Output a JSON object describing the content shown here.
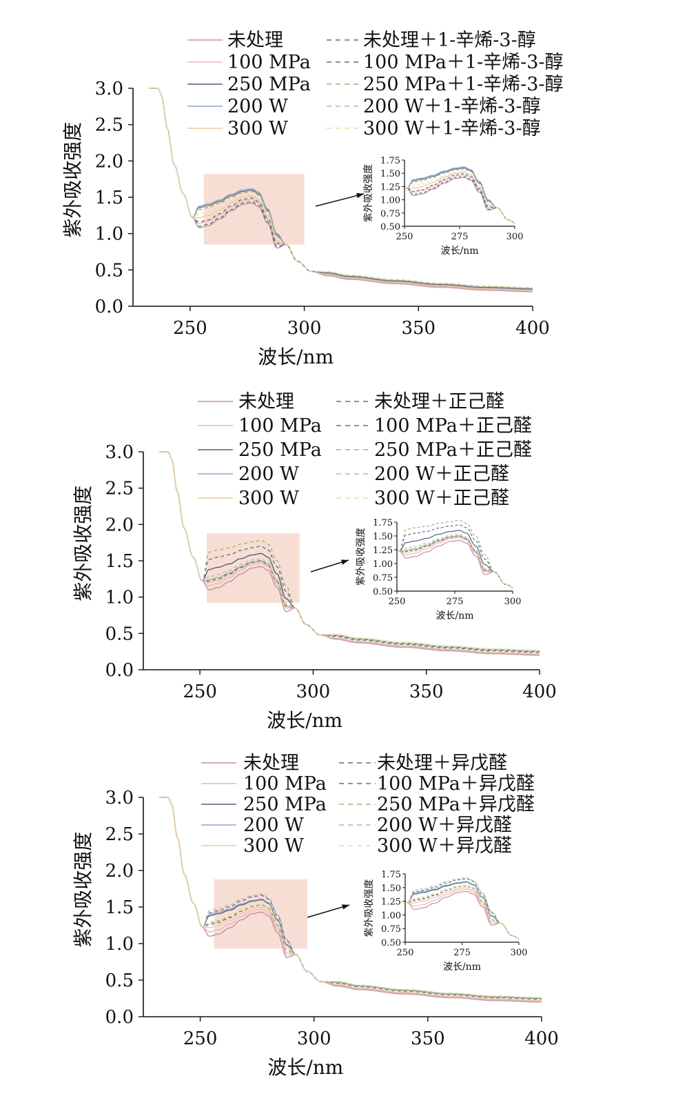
{
  "colors": {
    "untreated": "#c98da0",
    "p100": "#e8b8c4",
    "p250": "#4f5f7d",
    "w200": "#8ea7cc",
    "w300": "#f0c89a",
    "d_untreated": "#51786a",
    "d_p100": "#6b6b80",
    "d_p250": "#a6b170",
    "d_w200": "#a9b9ad",
    "d_w300": "#ecd9a6",
    "highlight": "#f6d8cc",
    "axis": "#111111"
  },
  "chart_data": [
    {
      "type": "line",
      "title": "",
      "xlabel": "波长/nm",
      "ylabel": "紫外吸收强度",
      "xlim": [
        225,
        400
      ],
      "ylim": [
        0,
        3.0
      ],
      "xticks": [
        "250",
        "300",
        "350",
        "400"
      ],
      "yticks": [
        "0.0",
        "0.5",
        "1.0",
        "1.5",
        "2.0",
        "2.5",
        "3.0"
      ],
      "legend_position": "top",
      "highlight_range": {
        "x": [
          256,
          300
        ],
        "y": [
          0.85,
          1.82
        ]
      },
      "inset": {
        "xlabel": "波长/nm",
        "ylabel": "紫外吸收强度",
        "xlim": [
          250,
          300
        ],
        "ylim": [
          0.5,
          1.75
        ],
        "xticks": [
          "250",
          "275",
          "300"
        ],
        "yticks": [
          "0.50",
          "0.75",
          "1.00",
          "1.25",
          "1.50",
          "1.75"
        ]
      },
      "series": [
        {
          "name": "未处理",
          "style": "solid",
          "color_key": "untreated",
          "min": 1.08,
          "peak": 1.42,
          "tail": 0.2
        },
        {
          "name": "100 MPa",
          "style": "solid",
          "color_key": "p100",
          "min": 1.14,
          "peak": 1.47,
          "tail": 0.21
        },
        {
          "name": "250 MPa",
          "style": "solid",
          "color_key": "p250",
          "min": 1.36,
          "peak": 1.6,
          "tail": 0.22
        },
        {
          "name": "200 W",
          "style": "solid",
          "color_key": "w200",
          "min": 1.38,
          "peak": 1.62,
          "tail": 0.23
        },
        {
          "name": "300 W",
          "style": "solid",
          "color_key": "w300",
          "min": 1.22,
          "peak": 1.52,
          "tail": 0.22
        },
        {
          "name": "未处理＋1-辛烯-3-醇",
          "style": "dashed",
          "color_key": "d_untreated",
          "min": 1.1,
          "peak": 1.44,
          "tail": 0.24
        },
        {
          "name": "100 MPa＋1-辛烯-3-醇",
          "style": "dashed",
          "color_key": "d_p100",
          "min": 1.16,
          "peak": 1.49,
          "tail": 0.24
        },
        {
          "name": "250 MPa＋1-辛烯-3-醇",
          "style": "dashed",
          "color_key": "d_p250",
          "min": 1.33,
          "peak": 1.58,
          "tail": 0.25
        },
        {
          "name": "200 W＋1-辛烯-3-醇",
          "style": "dashed",
          "color_key": "d_w200",
          "min": 1.35,
          "peak": 1.59,
          "tail": 0.25
        },
        {
          "name": "300 W＋1-辛烯-3-醇",
          "style": "dashed",
          "color_key": "d_w300",
          "min": 1.27,
          "peak": 1.53,
          "tail": 0.26
        }
      ]
    },
    {
      "type": "line",
      "title": "",
      "xlabel": "波长/nm",
      "ylabel": "紫外吸收强度",
      "xlim": [
        225,
        400
      ],
      "ylim": [
        0,
        3.0
      ],
      "xticks": [
        "250",
        "300",
        "350",
        "400"
      ],
      "yticks": [
        "0.0",
        "0.5",
        "1.0",
        "1.5",
        "2.0",
        "2.5",
        "3.0"
      ],
      "legend_position": "top",
      "highlight_range": {
        "x": [
          253,
          294
        ],
        "y": [
          0.92,
          1.88
        ]
      },
      "inset": {
        "xlabel": "波长/nm",
        "ylabel": "紫外吸收强度",
        "xlim": [
          250,
          300
        ],
        "ylim": [
          0.5,
          1.75
        ],
        "xticks": [
          "250",
          "275",
          "300"
        ],
        "yticks": [
          "0.50",
          "0.75",
          "1.00",
          "1.25",
          "1.50",
          "1.75"
        ]
      },
      "series": [
        {
          "name": "未处理",
          "style": "solid",
          "color_key": "untreated",
          "min": 1.1,
          "peak": 1.42,
          "tail": 0.2
        },
        {
          "name": "100 MPa",
          "style": "solid",
          "color_key": "p100",
          "min": 1.16,
          "peak": 1.47,
          "tail": 0.21
        },
        {
          "name": "250 MPa",
          "style": "solid",
          "color_key": "p250",
          "min": 1.38,
          "peak": 1.6,
          "tail": 0.22
        },
        {
          "name": "200 W",
          "style": "solid",
          "color_key": "w200",
          "min": 1.24,
          "peak": 1.5,
          "tail": 0.22
        },
        {
          "name": "300 W",
          "style": "solid",
          "color_key": "w300",
          "min": 1.2,
          "peak": 1.49,
          "tail": 0.22
        },
        {
          "name": "未处理＋正己醛",
          "style": "dashed",
          "color_key": "d_untreated",
          "min": 1.22,
          "peak": 1.5,
          "tail": 0.24
        },
        {
          "name": "100 MPa＋正己醛",
          "style": "dashed",
          "color_key": "d_p100",
          "min": 1.52,
          "peak": 1.7,
          "tail": 0.25
        },
        {
          "name": "250 MPa＋正己醛",
          "style": "dashed",
          "color_key": "d_p250",
          "min": 1.62,
          "peak": 1.78,
          "tail": 0.26
        },
        {
          "name": "200 W＋正己醛",
          "style": "dashed",
          "color_key": "d_w200",
          "min": 1.28,
          "peak": 1.53,
          "tail": 0.25
        },
        {
          "name": "300 W＋正己醛",
          "style": "dashed",
          "color_key": "d_w300",
          "min": 1.25,
          "peak": 1.52,
          "tail": 0.27
        }
      ]
    },
    {
      "type": "line",
      "title": "",
      "xlabel": "波长/nm",
      "ylabel": "紫外吸收强度",
      "xlim": [
        225,
        400
      ],
      "ylim": [
        0,
        3.0
      ],
      "xticks": [
        "250",
        "300",
        "350",
        "400"
      ],
      "yticks": [
        "0.0",
        "0.5",
        "1.0",
        "1.5",
        "2.0",
        "2.5",
        "3.0"
      ],
      "legend_position": "top",
      "highlight_range": {
        "x": [
          256,
          297
        ],
        "y": [
          0.93,
          1.88
        ]
      },
      "inset": {
        "xlabel": "波长/nm",
        "ylabel": "紫外吸收强度",
        "xlim": [
          250,
          300
        ],
        "ylim": [
          0.5,
          1.75
        ],
        "xticks": [
          "250",
          "275",
          "300"
        ],
        "yticks": [
          "0.50",
          "0.75",
          "1.00",
          "1.25",
          "1.50",
          "1.75"
        ]
      },
      "series": [
        {
          "name": "未处理",
          "style": "solid",
          "color_key": "untreated",
          "min": 1.1,
          "peak": 1.43,
          "tail": 0.2
        },
        {
          "name": "100 MPa",
          "style": "solid",
          "color_key": "p100",
          "min": 1.16,
          "peak": 1.47,
          "tail": 0.21
        },
        {
          "name": "250 MPa",
          "style": "solid",
          "color_key": "p250",
          "min": 1.38,
          "peak": 1.6,
          "tail": 0.22
        },
        {
          "name": "200 W",
          "style": "solid",
          "color_key": "w200",
          "min": 1.4,
          "peak": 1.61,
          "tail": 0.22
        },
        {
          "name": "300 W",
          "style": "solid",
          "color_key": "w300",
          "min": 1.22,
          "peak": 1.5,
          "tail": 0.22
        },
        {
          "name": "未处理＋异戊醛",
          "style": "dashed",
          "color_key": "d_untreated",
          "min": 1.26,
          "peak": 1.53,
          "tail": 0.24
        },
        {
          "name": "100 MPa＋异戊醛",
          "style": "dashed",
          "color_key": "d_p100",
          "min": 1.42,
          "peak": 1.66,
          "tail": 0.25
        },
        {
          "name": "250 MPa＋异戊醛",
          "style": "dashed",
          "color_key": "d_p250",
          "min": 1.28,
          "peak": 1.53,
          "tail": 0.25
        },
        {
          "name": "200 W＋异戊醛",
          "style": "dashed",
          "color_key": "d_w200",
          "min": 1.45,
          "peak": 1.68,
          "tail": 0.26
        },
        {
          "name": "300 W＋异戊醛",
          "style": "dashed",
          "color_key": "d_w300",
          "min": 1.3,
          "peak": 1.55,
          "tail": 0.26
        }
      ]
    }
  ]
}
